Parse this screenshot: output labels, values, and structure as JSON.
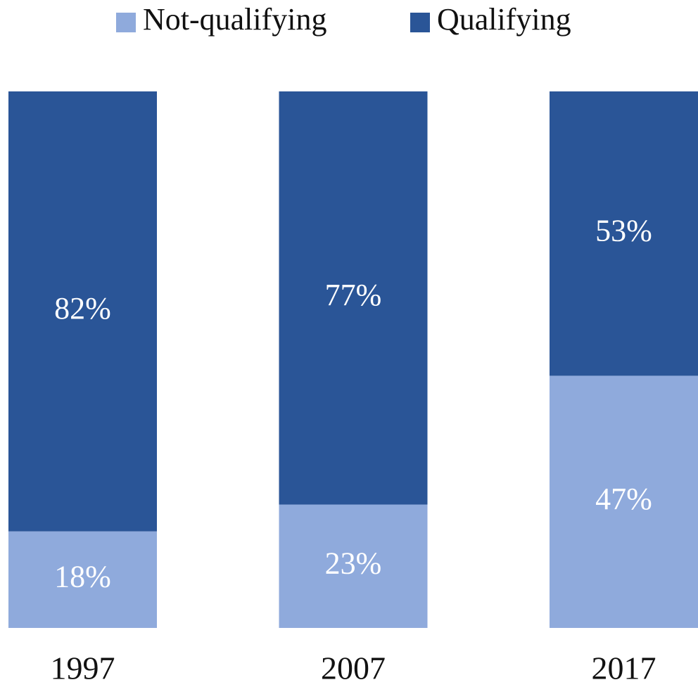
{
  "chart_data": {
    "type": "stacked_bar",
    "categories": [
      "1997",
      "2007",
      "2017"
    ],
    "series": [
      {
        "name": "Not-qualifying",
        "color": "#8faadc",
        "values": [
          18,
          23,
          47
        ],
        "value_labels": [
          "18%",
          "23%",
          "47%"
        ]
      },
      {
        "name": "Qualifying",
        "color": "#2a5597",
        "values": [
          82,
          77,
          53
        ],
        "value_labels": [
          "82%",
          "77%",
          "53%"
        ]
      }
    ],
    "legend": "top"
  }
}
